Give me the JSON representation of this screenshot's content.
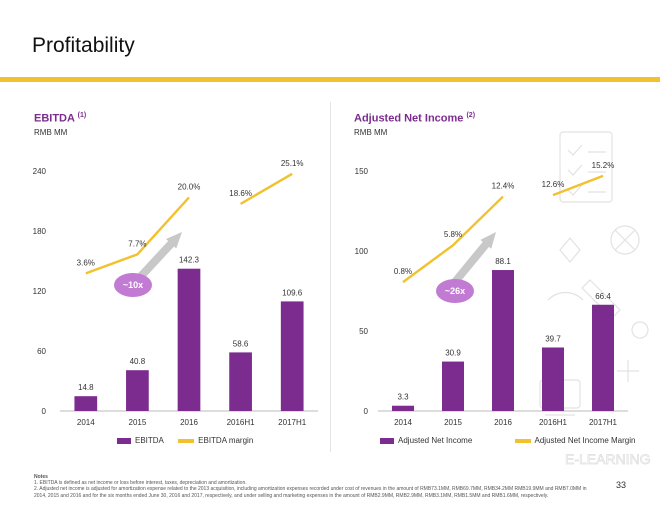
{
  "page": {
    "title": "Profitability",
    "page_number": "33",
    "accent_color": "#F2C12E",
    "bar_color": "#7B2C8E",
    "line_color": "#F2C12E",
    "bubble_color": "#C27BD3",
    "background_decoration_text": "E-LEARNING"
  },
  "notes": {
    "heading": "Notes",
    "items": [
      "1.  EBITDA is defined as net income or loss before interest, taxes, depreciation and amortization.",
      "2.  Adjusted net income is adjusted for amortization expense related to the 2013 acquisition, including amortization expenses recorded under cost of revenues in the amount of RMB73.1MM, RMB69.7MM, RMB34.2MM RMB19.9MM and RMB7.0MM in 2014, 2015 and 2016 and for the six months ended June 30, 2016 and 2017, respectively, and under selling and marketing expenses in the amount of RMB2.9MM, RMB2.9MM, RMB3.1MM, RMB1.5MM and RMB1.6MM, respectively."
    ]
  },
  "chart_data": [
    {
      "type": "bar",
      "title": "EBITDA",
      "title_superscript": "(1)",
      "subtitle": "RMB MM",
      "categories": [
        "2014",
        "2015",
        "2016",
        "2016H1",
        "2017H1"
      ],
      "ylim": [
        0,
        240
      ],
      "yticks": [
        0,
        60,
        120,
        180,
        240
      ],
      "series": [
        {
          "name": "EBITDA",
          "type": "bar",
          "values": [
            14.8,
            40.8,
            142.3,
            58.6,
            109.6
          ],
          "labels": [
            "14.8",
            "40.8",
            "142.3",
            "58.6",
            "109.6"
          ]
        },
        {
          "name": "EBITDA margin",
          "type": "line",
          "values": [
            3.6,
            7.7,
            20.0,
            18.6,
            25.1
          ],
          "labels": [
            "3.6%",
            "7.7%",
            "20.0%",
            "18.6%",
            "25.1%"
          ],
          "segments": [
            [
              0,
              1,
              2
            ],
            [
              3,
              4
            ]
          ]
        }
      ],
      "growth_callout": "~10x",
      "grid": false
    },
    {
      "type": "bar",
      "title": "Adjusted Net Income",
      "title_superscript": "(2)",
      "subtitle": "RMB MM",
      "categories": [
        "2014",
        "2015",
        "2016",
        "2016H1",
        "2017H1"
      ],
      "ylim": [
        0,
        150
      ],
      "yticks": [
        0,
        50,
        100,
        150
      ],
      "series": [
        {
          "name": "Adjusted Net Income",
          "type": "bar",
          "values": [
            3.3,
            30.9,
            88.1,
            39.7,
            66.4
          ],
          "labels": [
            "3.3",
            "30.9",
            "88.1",
            "39.7",
            "66.4"
          ]
        },
        {
          "name": "Adjusted Net Income Margin",
          "type": "line",
          "values": [
            0.8,
            5.8,
            12.4,
            12.6,
            15.2
          ],
          "labels": [
            "0.8%",
            "5.8%",
            "12.4%",
            "12.6%",
            "15.2%"
          ],
          "segments": [
            [
              0,
              1,
              2
            ],
            [
              3,
              4
            ]
          ]
        }
      ],
      "growth_callout": "~26x",
      "grid": false
    }
  ]
}
